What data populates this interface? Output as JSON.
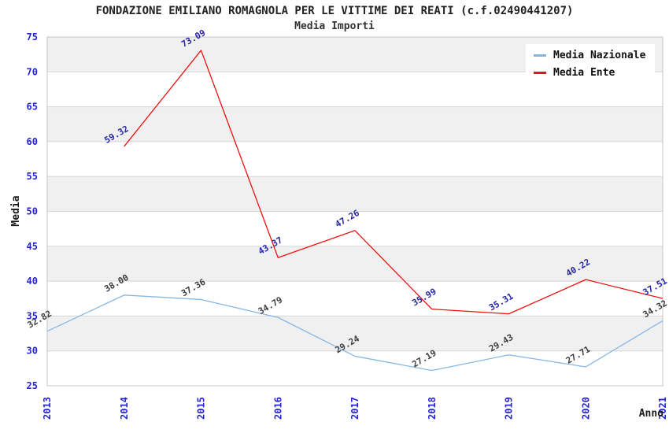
{
  "chart_data": {
    "type": "line",
    "title": "FONDAZIONE EMILIANO ROMAGNOLA PER LE VITTIME DEI REATI (c.f.02490441207)",
    "subtitle": "Media Importi",
    "xlabel": "Anno",
    "ylabel": "Media",
    "x": [
      2013,
      2014,
      2015,
      2016,
      2017,
      2018,
      2019,
      2020,
      2021
    ],
    "ylim": [
      25,
      75
    ],
    "ytick_step": 5,
    "grid": true,
    "legend_position": "top-right",
    "label_rotation_deg": -30,
    "band_colors": [
      "#ffffff",
      "#f0f0f0"
    ],
    "gridline_color": "#d6d6d6",
    "border_color": "#c4c4c4",
    "tick_label_color": "#2323d7",
    "axis_title_color": "#1a1a1a",
    "series": [
      {
        "name": "Media Nazionale",
        "color": "#85b7e6",
        "label_color": "#3d3d3d",
        "values": [
          32.82,
          38.0,
          37.36,
          34.79,
          29.24,
          27.19,
          29.43,
          27.71,
          34.32
        ]
      },
      {
        "name": "Media Ente",
        "color": "#ee1111",
        "label_color": "#2626a8",
        "values": [
          null,
          59.32,
          73.09,
          43.37,
          47.26,
          35.99,
          35.31,
          40.22,
          37.51
        ]
      }
    ]
  }
}
